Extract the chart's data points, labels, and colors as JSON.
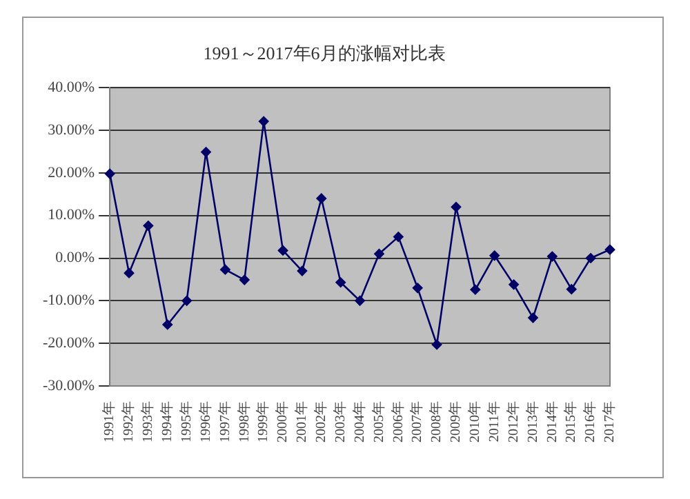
{
  "chart_data": {
    "type": "line",
    "title": "1991～2017年6月的涨幅对比表",
    "categories": [
      "1991年",
      "1992年",
      "1993年",
      "1994年",
      "1995年",
      "1996年",
      "1997年",
      "1998年",
      "1999年",
      "2000年",
      "2001年",
      "2002年",
      "2003年",
      "2004年",
      "2005年",
      "2006年",
      "2007年",
      "2008年",
      "2009年",
      "2010年",
      "2011年",
      "2012年",
      "2013年",
      "2014年",
      "2015年",
      "2016年",
      "2017年"
    ],
    "series": [
      {
        "color": "#000066",
        "values": [
          19.8,
          -3.5,
          7.6,
          -15.6,
          -10,
          24.9,
          -2.7,
          -5.1,
          32.1,
          1.8,
          -3,
          14,
          -5.7,
          -10,
          1,
          5,
          -7,
          -20.3,
          12,
          -7.4,
          0.6,
          -6.2,
          -14,
          0.4,
          -7.3,
          0,
          2
        ]
      }
    ],
    "ylim": [
      -30,
      40
    ],
    "yticks": [
      {
        "value": -30,
        "label": "-30.00%"
      },
      {
        "value": -20,
        "label": "-20.00%"
      },
      {
        "value": -10,
        "label": "-10.00%"
      },
      {
        "value": 0,
        "label": "0.00%"
      },
      {
        "value": 10,
        "label": "10.00%"
      },
      {
        "value": 20,
        "label": "20.00%"
      },
      {
        "value": 30,
        "label": "30.00%"
      },
      {
        "value": 40,
        "label": "40.00%"
      }
    ],
    "grid": "y",
    "legend": false,
    "marker": "diamond",
    "line_style": "solid"
  }
}
